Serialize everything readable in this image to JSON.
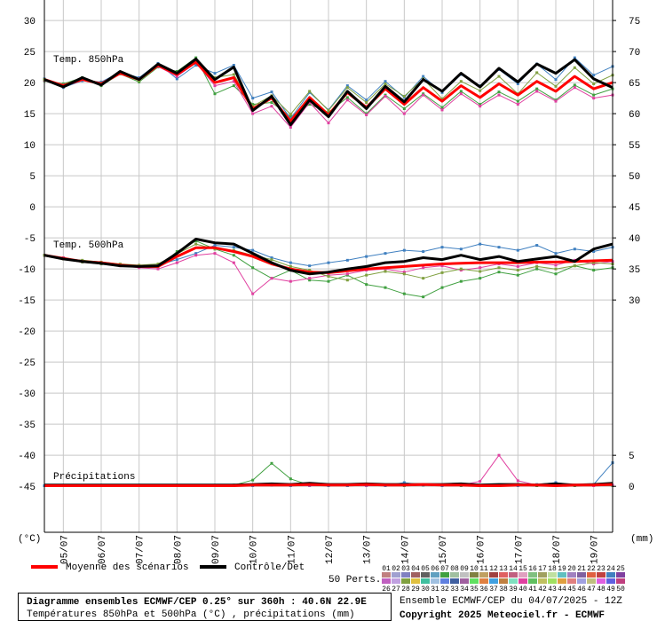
{
  "chart_data": {
    "type": "line",
    "title": "Diagramme ensembles ECMWF/CEP 0.25° sur 360h : 40.6N 22.9E",
    "subtitle": "Températures 850hPa et 500hPa (°C) , précipitations (mm)",
    "source": "Ensemble ECMWF/CEP du 04/07/2025 - 12Z",
    "copyright": "Copyright 2025 Meteociel.fr - ECMWF",
    "y_label": "(°C)",
    "y2_label": "(mm)",
    "annotations": [
      "Temp. 850hPa",
      "Temp. 500hPa",
      "Précipitations"
    ],
    "members_label": "50 Perts.",
    "grid": true,
    "categories": [
      null,
      "05/07",
      null,
      "06/07",
      null,
      "07/07",
      null,
      "08/07",
      null,
      "09/07",
      null,
      "10/07",
      null,
      "11/07",
      null,
      "12/07",
      null,
      "13/07",
      null,
      "14/07",
      null,
      "15/07",
      null,
      "16/07",
      null,
      "17/07",
      null,
      "18/07",
      null,
      "19/07",
      null
    ],
    "ylim": [
      -52.4,
      33.3
    ],
    "yticks": [
      30,
      25,
      20,
      15,
      10,
      5,
      0,
      -5,
      -10,
      -15,
      -20,
      -25,
      -30,
      -35,
      -40,
      -45
    ],
    "y2lim": [
      -7.4,
      78.3
    ],
    "y2ticks": [
      75,
      70,
      65,
      60,
      55,
      50,
      45,
      40,
      35,
      30,
      5,
      0
    ],
    "members": [
      {
        "label": "01",
        "color": "#c08080"
      },
      {
        "label": "02",
        "color": "#a0a0d0"
      },
      {
        "label": "03",
        "color": "#8080c0"
      },
      {
        "label": "04",
        "color": "#a06060"
      },
      {
        "label": "05",
        "color": "#606060"
      },
      {
        "label": "06",
        "color": "#60a0c0"
      },
      {
        "label": "07",
        "color": "#40a040"
      },
      {
        "label": "08",
        "color": "#a0c0a0"
      },
      {
        "label": "09",
        "color": "#c0c0c0"
      },
      {
        "label": "10",
        "color": "#808040"
      },
      {
        "label": "11",
        "color": "#c0a060"
      },
      {
        "label": "12",
        "color": "#a04040"
      },
      {
        "label": "13",
        "color": "#e06060"
      },
      {
        "label": "14",
        "color": "#c06080"
      },
      {
        "label": "15",
        "color": "#e0a0c0"
      },
      {
        "label": "16",
        "color": "#80c080"
      },
      {
        "label": "17",
        "color": "#a0a060"
      },
      {
        "label": "18",
        "color": "#c0e0a0"
      },
      {
        "label": "19",
        "color": "#60c0c0"
      },
      {
        "label": "20",
        "color": "#a080c0"
      },
      {
        "label": "21",
        "color": "#8060a0"
      },
      {
        "label": "22",
        "color": "#e06040"
      },
      {
        "label": "23",
        "color": "#c04040"
      },
      {
        "label": "24",
        "color": "#4080c0"
      },
      {
        "label": "25",
        "color": "#8040a0"
      },
      {
        "label": "26",
        "color": "#c060c0"
      },
      {
        "label": "27",
        "color": "#c0a0e0"
      },
      {
        "label": "28",
        "color": "#80a040"
      },
      {
        "label": "29",
        "color": "#e0c040"
      },
      {
        "label": "30",
        "color": "#40c0a0"
      },
      {
        "label": "31",
        "color": "#a0c0e0"
      },
      {
        "label": "32",
        "color": "#6080e0"
      },
      {
        "label": "33",
        "color": "#4060a0"
      },
      {
        "label": "34",
        "color": "#a060a0"
      },
      {
        "label": "35",
        "color": "#60e060"
      },
      {
        "label": "36",
        "color": "#e08040"
      },
      {
        "label": "37",
        "color": "#40a0e0"
      },
      {
        "label": "38",
        "color": "#c08040"
      },
      {
        "label": "39",
        "color": "#80e0c0"
      },
      {
        "label": "40",
        "color": "#e040a0"
      },
      {
        "label": "41",
        "color": "#60c060"
      },
      {
        "label": "42",
        "color": "#c0c060"
      },
      {
        "label": "43",
        "color": "#a0e060"
      },
      {
        "label": "44",
        "color": "#e0a040"
      },
      {
        "label": "45",
        "color": "#e08080"
      },
      {
        "label": "46",
        "color": "#a0a0e0"
      },
      {
        "label": "47",
        "color": "#c0c080"
      },
      {
        "label": "48",
        "color": "#e060e0"
      },
      {
        "label": "49",
        "color": "#6060e0"
      },
      {
        "label": "50",
        "color": "#c04080"
      }
    ],
    "series": [
      {
        "name": "07",
        "color": "#40a040",
        "width": 1,
        "values": [
          20.3,
          19.8,
          20.8,
          19.5,
          21.4,
          20.1,
          22.5,
          21.8,
          24.0,
          18.2,
          19.5,
          16.5,
          16.8,
          14.5,
          16.5,
          15.2,
          17.6,
          15.0,
          18.0,
          15.8,
          18.2,
          16.0,
          18.6,
          16.5,
          18.5,
          17.0,
          19.0,
          17.2,
          19.6,
          18.0,
          19.0
        ]
      },
      {
        "name": "24",
        "color": "#4080c0",
        "width": 1,
        "values": [
          20.6,
          19.2,
          20.3,
          20.1,
          21.7,
          20.8,
          23.1,
          20.6,
          22.8,
          21.5,
          22.8,
          17.5,
          18.5,
          14.2,
          18.4,
          15.6,
          19.5,
          17.2,
          20.2,
          17.6,
          21.0,
          18.4,
          21.3,
          19.5,
          22.1,
          19.8,
          23.0,
          20.5,
          24.0,
          21.2,
          22.6
        ]
      },
      {
        "name": "40",
        "color": "#e040a0",
        "width": 1,
        "values": [
          20.4,
          19.6,
          20.6,
          19.7,
          21.5,
          20.6,
          22.6,
          21.0,
          23.2,
          19.5,
          20.2,
          15.0,
          16.2,
          12.8,
          16.8,
          13.5,
          17.2,
          14.8,
          17.8,
          15.0,
          18.0,
          15.6,
          18.2,
          16.2,
          18.0,
          16.5,
          18.6,
          17.0,
          19.2,
          17.5,
          18.0
        ]
      },
      {
        "name": "28",
        "color": "#80a040",
        "width": 1,
        "values": [
          20.5,
          19.5,
          20.7,
          19.9,
          21.6,
          20.3,
          22.9,
          21.5,
          23.5,
          20.8,
          21.3,
          16.2,
          17.9,
          14.9,
          18.6,
          15.5,
          19.2,
          16.8,
          19.8,
          17.8,
          20.6,
          17.4,
          20.2,
          18.7,
          21.0,
          18.2,
          21.6,
          19.4,
          22.4,
          19.8,
          21.2
        ]
      },
      {
        "name": "07",
        "color": "#40a040",
        "width": 1,
        "values": [
          -7.8,
          -8.2,
          -8.9,
          -9.2,
          -9.3,
          -9.7,
          -9.8,
          -7.2,
          -5.5,
          -6.8,
          -7.8,
          -9.8,
          -11.5,
          -10.2,
          -11.8,
          -12.0,
          -11.0,
          -12.5,
          -13.0,
          -14.0,
          -14.5,
          -13.0,
          -12.0,
          -11.5,
          -10.5,
          -11.0,
          -10.0,
          -10.8,
          -9.5,
          -10.2,
          -9.8
        ]
      },
      {
        "name": "24",
        "color": "#4080c0",
        "width": 1,
        "values": [
          -7.8,
          -8.3,
          -8.7,
          -9.0,
          -9.3,
          -9.5,
          -9.4,
          -8.5,
          -7.5,
          -6.2,
          -6.5,
          -7.0,
          -8.2,
          -9.0,
          -9.5,
          -9.0,
          -8.6,
          -8.0,
          -7.5,
          -7.0,
          -7.2,
          -6.5,
          -6.8,
          -6.0,
          -6.5,
          -7.0,
          -6.2,
          -7.5,
          -6.8,
          -7.2,
          -6.5
        ]
      },
      {
        "name": "40",
        "color": "#e040a0",
        "width": 1,
        "values": [
          -7.8,
          -8.2,
          -8.8,
          -9.1,
          -9.5,
          -9.8,
          -10.0,
          -9.0,
          -7.8,
          -7.5,
          -9.0,
          -14.0,
          -11.5,
          -12.0,
          -11.5,
          -11.0,
          -10.8,
          -10.2,
          -10.0,
          -10.5,
          -9.8,
          -9.5,
          -10.2,
          -9.8,
          -9.2,
          -9.6,
          -9.0,
          -9.4,
          -8.6,
          -9.2,
          -8.8
        ]
      },
      {
        "name": "28",
        "color": "#80a040",
        "width": 1,
        "values": [
          -7.8,
          -8.4,
          -8.6,
          -8.9,
          -9.2,
          -9.4,
          -9.2,
          -7.6,
          -6.0,
          -6.8,
          -7.0,
          -7.8,
          -8.5,
          -9.6,
          -10.2,
          -11.2,
          -11.8,
          -11.0,
          -10.4,
          -10.8,
          -11.5,
          -10.6,
          -10.0,
          -10.4,
          -9.8,
          -10.2,
          -9.6,
          -10.0,
          -9.5,
          -9.0,
          -9.2
        ]
      },
      {
        "name": "07",
        "color": "#40a040",
        "width": 1,
        "axis": "y2",
        "values": [
          0.1,
          0.1,
          0.1,
          0.1,
          0.1,
          0.1,
          0.1,
          0.1,
          0.1,
          0.1,
          0.2,
          1.0,
          3.7,
          1.2,
          0.2,
          0.1,
          0.1,
          0.2,
          0.1,
          0.1,
          0.2,
          0.1,
          0.1,
          0.1,
          0.2,
          0.3,
          0.1,
          0.2,
          0.1,
          0.2,
          0.1
        ]
      },
      {
        "name": "40",
        "color": "#e040a0",
        "width": 1,
        "axis": "y2",
        "values": [
          0.1,
          0.1,
          0.1,
          0.1,
          0.1,
          0.1,
          0.1,
          0.1,
          0.1,
          0.1,
          0.1,
          0.2,
          0.3,
          0.2,
          0.1,
          0.1,
          0.2,
          0.1,
          0.1,
          0.2,
          0.3,
          0.2,
          0.2,
          0.8,
          5.0,
          0.9,
          0.2,
          0.1,
          0.2,
          0.1,
          0.2
        ]
      },
      {
        "name": "24",
        "color": "#4080c0",
        "width": 1,
        "axis": "y2",
        "values": [
          0.1,
          0.1,
          0.1,
          0.1,
          0.1,
          0.1,
          0.1,
          0.1,
          0.1,
          0.1,
          0.1,
          0.1,
          0.2,
          0.1,
          0.2,
          0.1,
          0.1,
          0.2,
          0.1,
          0.6,
          0.2,
          0.1,
          0.2,
          0.1,
          0.2,
          0.1,
          0.3,
          0.6,
          0.2,
          0.3,
          3.8
        ]
      },
      {
        "name": "Moyenne des scénarios",
        "color": "#ff0000",
        "width": 3,
        "values": [
          20.5,
          19.5,
          20.5,
          19.8,
          21.5,
          20.5,
          22.8,
          21.3,
          23.3,
          20.0,
          20.8,
          15.8,
          17.5,
          13.8,
          17.6,
          14.8,
          18.4,
          16.0,
          19.0,
          16.5,
          19.2,
          17.0,
          19.5,
          17.6,
          19.8,
          18.0,
          20.2,
          18.6,
          21.0,
          19.0,
          20.0
        ]
      },
      {
        "name": "Contrôle/Det",
        "color": "#000000",
        "width": 3,
        "values": [
          20.5,
          19.3,
          20.8,
          19.6,
          21.8,
          20.5,
          23.0,
          21.5,
          23.8,
          20.5,
          22.5,
          15.5,
          17.8,
          13.2,
          17.2,
          14.5,
          18.6,
          15.8,
          19.4,
          16.9,
          20.5,
          18.6,
          21.5,
          19.3,
          22.3,
          20.1,
          23.0,
          21.5,
          23.7,
          20.6,
          19.2
        ]
      },
      {
        "name": "Moyenne des scénarios",
        "color": "#ff0000",
        "width": 3,
        "values": [
          -7.8,
          -8.3,
          -8.8,
          -9.0,
          -9.4,
          -9.6,
          -9.6,
          -8.0,
          -6.6,
          -6.6,
          -7.2,
          -8.0,
          -9.2,
          -10.0,
          -10.5,
          -10.6,
          -10.3,
          -10.0,
          -9.8,
          -9.6,
          -9.4,
          -9.2,
          -9.1,
          -9.0,
          -9.0,
          -9.0,
          -8.9,
          -8.9,
          -8.8,
          -8.7,
          -8.6
        ]
      },
      {
        "name": "Contrôle/Det",
        "color": "#000000",
        "width": 3,
        "values": [
          -7.8,
          -8.4,
          -8.8,
          -9.1,
          -9.5,
          -9.6,
          -9.5,
          -7.5,
          -5.2,
          -5.8,
          -6.0,
          -7.5,
          -9.0,
          -10.2,
          -10.8,
          -10.5,
          -10.0,
          -9.6,
          -9.0,
          -8.8,
          -8.2,
          -8.5,
          -7.8,
          -8.5,
          -8.0,
          -8.8,
          -8.4,
          -8.0,
          -8.8,
          -6.8,
          -6.0
        ]
      },
      {
        "name": "Contrôle/Det",
        "color": "#000000",
        "width": 3,
        "axis": "y2",
        "values": [
          0.2,
          0.2,
          0.2,
          0.2,
          0.2,
          0.2,
          0.2,
          0.2,
          0.2,
          0.2,
          0.2,
          0.3,
          0.4,
          0.3,
          0.5,
          0.3,
          0.3,
          0.4,
          0.3,
          0.3,
          0.3,
          0.3,
          0.4,
          0.2,
          0.3,
          0.3,
          0.2,
          0.4,
          0.2,
          0.3,
          0.5
        ]
      },
      {
        "name": "Moyenne des scénarios",
        "color": "#ff0000",
        "width": 3,
        "axis": "y2",
        "values": [
          0.1,
          0.1,
          0.1,
          0.1,
          0.1,
          0.1,
          0.1,
          0.1,
          0.1,
          0.1,
          0.1,
          0.2,
          0.2,
          0.2,
          0.3,
          0.2,
          0.2,
          0.3,
          0.2,
          0.2,
          0.3,
          0.2,
          0.2,
          0.1,
          0.1,
          0.2,
          0.2,
          0.1,
          0.2,
          0.2,
          0.3
        ]
      }
    ]
  }
}
